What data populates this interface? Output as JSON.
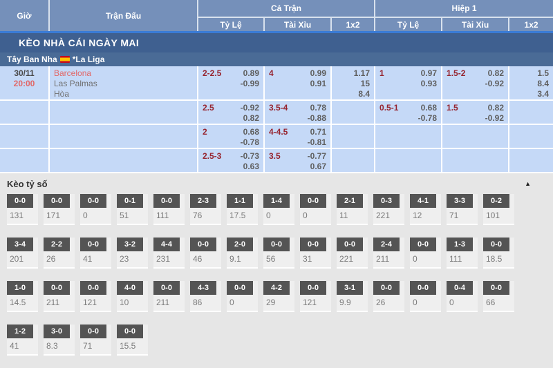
{
  "colors": {
    "header_blue": "#7590ba",
    "banner_navy": "#3f6090",
    "league_navy": "#4a6b96",
    "accent_blue": "#3a7bd5",
    "row_light_blue": "#c5d9f7",
    "handicap_red": "#96242f",
    "team_red": "#e26666",
    "score_box_gray": "#545454"
  },
  "table": {
    "headers": {
      "time": "Giờ",
      "match": "Trận Đấu",
      "full_match": "Cả Trận",
      "first_half": "Hiệp 1",
      "sub": [
        "Tỷ Lệ",
        "Tài Xỉu",
        "1x2"
      ]
    },
    "banner": "KÈO NHÀ CÁI NGÀY MAI",
    "league": {
      "country": "Tây Ban Nha",
      "flag": "spain-flag",
      "name": "*La Liga"
    },
    "match": {
      "date": "30/11",
      "time": "20:00",
      "home": "Barcelona",
      "away": "Las Palmas",
      "draw": "Hòa"
    },
    "odds_rows": [
      [
        {
          "line": "2-2.5",
          "odds": [
            "0.89",
            "-0.99"
          ]
        },
        {
          "line": "4",
          "odds": [
            "0.99",
            "0.91"
          ]
        },
        {
          "odds3": [
            "1.17",
            "15",
            "8.4"
          ]
        },
        {
          "line": "1",
          "odds": [
            "0.97",
            "0.93"
          ]
        },
        {
          "line": "1.5-2",
          "odds": [
            "0.82",
            "-0.92"
          ]
        },
        {
          "odds3": [
            "1.5",
            "8.4",
            "3.4"
          ]
        }
      ],
      [
        {
          "line": "2.5",
          "odds": [
            "-0.92",
            "0.82"
          ]
        },
        {
          "line": "3.5-4",
          "odds": [
            "0.78",
            "-0.88"
          ]
        },
        null,
        {
          "line": "0.5-1",
          "odds": [
            "0.68",
            "-0.78"
          ]
        },
        {
          "line": "1.5",
          "odds": [
            "0.82",
            "-0.92"
          ]
        },
        null
      ],
      [
        {
          "line": "2",
          "odds": [
            "0.68",
            "-0.78"
          ]
        },
        {
          "line": "4-4.5",
          "odds": [
            "0.71",
            "-0.81"
          ]
        },
        null,
        null,
        null,
        null
      ],
      [
        {
          "line": "2.5-3",
          "odds": [
            "-0.73",
            "0.63"
          ]
        },
        {
          "line": "3.5",
          "odds": [
            "-0.77",
            "0.67"
          ]
        },
        null,
        null,
        null,
        null
      ]
    ]
  },
  "score_section": {
    "title": "Kèo tỷ số",
    "collapse_icon": "triangle-up",
    "rows": [
      [
        {
          "score": "0-0",
          "value": "131"
        },
        {
          "score": "0-0",
          "value": "171"
        },
        {
          "score": "0-0",
          "value": "0"
        },
        {
          "score": "0-1",
          "value": "51"
        },
        {
          "score": "0-0",
          "value": "111"
        },
        {
          "score": "2-3",
          "value": "76"
        },
        {
          "score": "1-1",
          "value": "17.5"
        },
        {
          "score": "1-4",
          "value": "0"
        },
        {
          "score": "0-0",
          "value": "0"
        },
        {
          "score": "2-1",
          "value": "11"
        },
        {
          "score": "0-3",
          "value": "221"
        },
        {
          "score": "4-1",
          "value": "12"
        },
        {
          "score": "3-3",
          "value": "71"
        },
        {
          "score": "0-2",
          "value": "101"
        }
      ],
      [
        {
          "score": "3-4",
          "value": "201"
        },
        {
          "score": "2-2",
          "value": "26"
        },
        {
          "score": "0-0",
          "value": "41"
        },
        {
          "score": "3-2",
          "value": "23"
        },
        {
          "score": "4-4",
          "value": "231"
        },
        {
          "score": "0-0",
          "value": "46"
        },
        {
          "score": "2-0",
          "value": "9.1"
        },
        {
          "score": "0-0",
          "value": "56"
        },
        {
          "score": "0-0",
          "value": "31"
        },
        {
          "score": "0-0",
          "value": "221"
        },
        {
          "score": "2-4",
          "value": "211"
        },
        {
          "score": "0-0",
          "value": "0"
        },
        {
          "score": "1-3",
          "value": "111"
        },
        {
          "score": "0-0",
          "value": "18.5"
        }
      ],
      [
        {
          "score": "1-0",
          "value": "14.5"
        },
        {
          "score": "0-0",
          "value": "211"
        },
        {
          "score": "0-0",
          "value": "121"
        },
        {
          "score": "4-0",
          "value": "10"
        },
        {
          "score": "0-0",
          "value": "211"
        },
        {
          "score": "4-3",
          "value": "86"
        },
        {
          "score": "0-0",
          "value": "0"
        },
        {
          "score": "4-2",
          "value": "29"
        },
        {
          "score": "0-0",
          "value": "121"
        },
        {
          "score": "3-1",
          "value": "9.9"
        },
        {
          "score": "0-0",
          "value": "26"
        },
        {
          "score": "0-0",
          "value": "0"
        },
        {
          "score": "0-4",
          "value": "0"
        },
        {
          "score": "0-0",
          "value": "66"
        }
      ],
      [
        {
          "score": "1-2",
          "value": "41"
        },
        {
          "score": "3-0",
          "value": "8.3"
        },
        {
          "score": "0-0",
          "value": "71"
        },
        {
          "score": "0-0",
          "value": "15.5"
        }
      ]
    ]
  }
}
